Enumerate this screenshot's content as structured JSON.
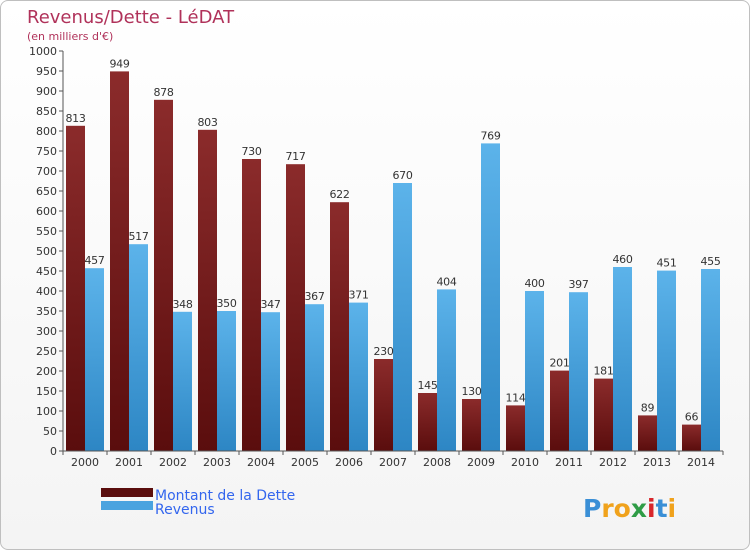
{
  "chart_data": {
    "type": "bar",
    "title": "Revenus/Dette - LéDAT",
    "subtitle": "(en milliers d'€)",
    "categories": [
      "2000",
      "2001",
      "2002",
      "2003",
      "2004",
      "2005",
      "2006",
      "2007",
      "2008",
      "2009",
      "2010",
      "2011",
      "2012",
      "2013",
      "2014"
    ],
    "series": [
      {
        "name": "Montant de la Dette",
        "color": "#7a1a1a",
        "values": [
          813,
          949,
          878,
          803,
          730,
          717,
          622,
          230,
          145,
          130,
          114,
          201,
          181,
          89,
          66
        ],
        "labels": [
          "813",
          "949",
          "878",
          "803",
          "730",
          "717",
          "622",
          "230",
          "145",
          "130",
          "114",
          "201",
          "181",
          "89",
          "66"
        ]
      },
      {
        "name": "Revenus",
        "color": "#4aa3df",
        "values": [
          457,
          517,
          348,
          350,
          347,
          367,
          371,
          670,
          404,
          769,
          400,
          397,
          460,
          451,
          455
        ],
        "labels": [
          "457",
          "517",
          "348",
          "350",
          "347",
          "367",
          "371",
          "670",
          "404",
          "769",
          "400",
          "397",
          "460",
          "451",
          "455"
        ]
      }
    ],
    "yticks": [
      "0",
      "50",
      "100",
      "150",
      "200",
      "250",
      "300",
      "350",
      "400",
      "450",
      "500",
      "550",
      "600",
      "650",
      "700",
      "750",
      "800",
      "850",
      "900",
      "950",
      "1000"
    ],
    "ylim": [
      0,
      1000
    ],
    "grid": false,
    "legend_position": "bottom-left"
  },
  "branding": {
    "logo_text": "Proxiti"
  }
}
